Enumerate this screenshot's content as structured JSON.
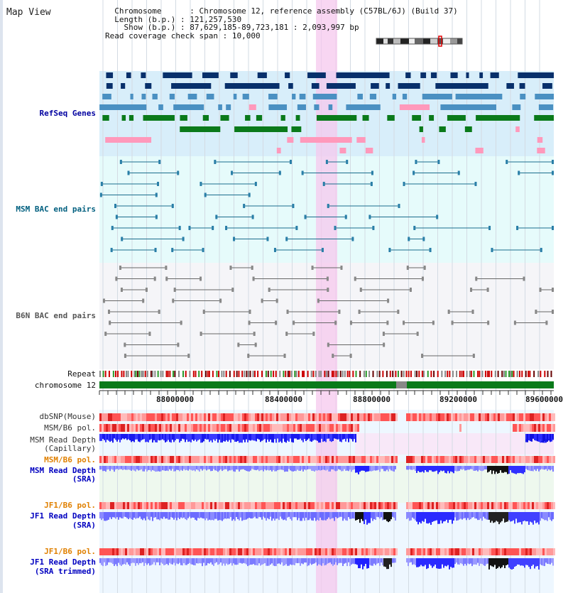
{
  "header": {
    "title": "Map View",
    "info": [
      {
        "key": "Chromosome",
        "value": "Chromosome 12, reference assembly (C57BL/6J) (Build 37)"
      },
      {
        "key": "Length (b.p.)",
        "value": "121,257,530"
      },
      {
        "key": "Show (b.p.)",
        "value": "87,629,185-89,723,181 : 2,093,997 bp"
      },
      {
        "key": "Read coverage check span",
        "value": "10,000"
      }
    ]
  },
  "tracks": {
    "refseq": "RefSeq Genes",
    "msm_bac": "MSM BAC end pairs",
    "b6n_bac": "B6N BAC end pairs",
    "repeat": "Repeat",
    "chromosome": "chromosome 12",
    "dbsnp": "dbSNP(Mouse)",
    "msm_b6_pol": "MSM/B6 pol.",
    "msm_depth_cap_1": "MSM Read Depth",
    "msm_depth_cap_2": "(Capillary)",
    "msm_b6_pol_sra": "MSM/B6 pol.",
    "msm_depth_sra_1": "MSM Read Depth",
    "msm_depth_sra_2": "(SRA)",
    "jf1_b6_pol": "JF1/B6 pol.",
    "jf1_depth_sra_1": "JF1 Read Depth",
    "jf1_depth_sra_2": "(SRA)",
    "jf1_b6_pol_2": "JF1/B6 pol.",
    "jf1_depth_trim_1": "JF1 Read Depth",
    "jf1_depth_trim_2": "(SRA trimmed)"
  },
  "axis": {
    "ticks": [
      "88000000",
      "88400000",
      "88800000",
      "89200000",
      "89600000"
    ]
  },
  "colors": {
    "refseq_label": "#0000a0",
    "msm_label": "#005f7f",
    "b6n_label": "#555555",
    "pol_label": "#e08000",
    "depth_label": "#0000c0",
    "highlight": "#f5c8ee"
  }
}
